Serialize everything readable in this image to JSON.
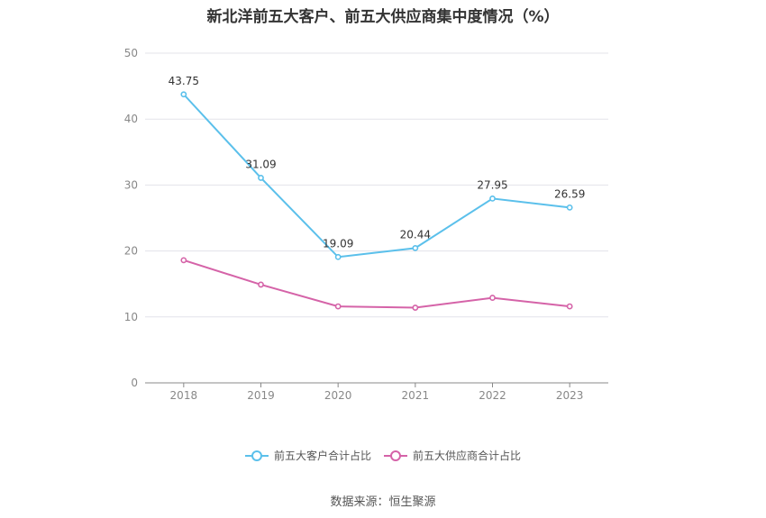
{
  "chart_data": {
    "type": "line",
    "title": "新北洋前五大客户、前五大供应商集中度情况（%）",
    "categories": [
      "2018",
      "2019",
      "2020",
      "2021",
      "2022",
      "2023"
    ],
    "ylim": [
      0,
      50
    ],
    "yticks": [
      "0",
      "10",
      "20",
      "30",
      "40",
      "50"
    ],
    "grid": true,
    "legend_position": "bottom",
    "series": [
      {
        "name": "前五大客户合计占比",
        "color": "#5bc0eb",
        "values": [
          43.75,
          31.09,
          19.09,
          20.44,
          27.95,
          26.59
        ],
        "labels": [
          "43.75",
          "31.09",
          "19.09",
          "20.44",
          "27.95",
          "26.59"
        ]
      },
      {
        "name": "前五大供应商合计占比",
        "color": "#d563a8",
        "values": [
          18.6,
          14.9,
          11.6,
          11.4,
          12.9,
          11.6
        ],
        "labels": []
      }
    ]
  },
  "source": "数据来源：恒生聚源"
}
